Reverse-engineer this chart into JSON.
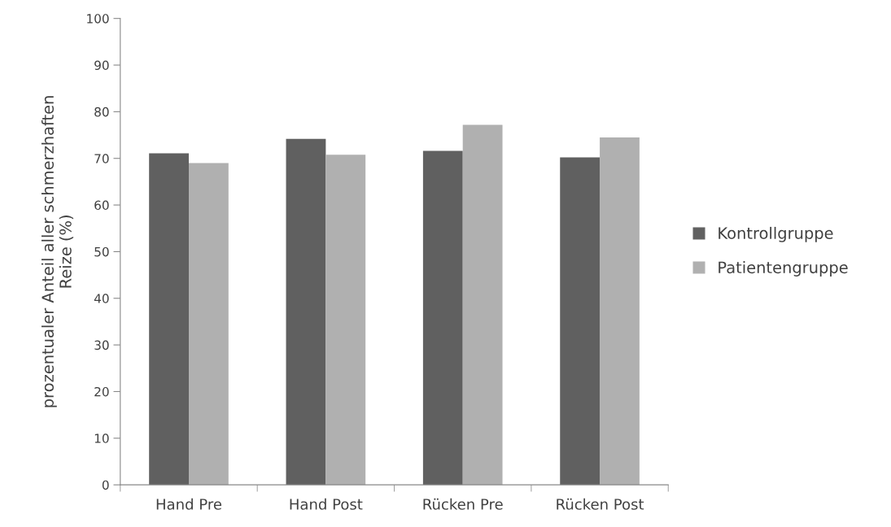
{
  "chart_data": {
    "type": "bar",
    "ylabel": "prozentualer Anteil aller schmerzhaften\nReize (%)",
    "categories": [
      "Hand Pre",
      "Hand Post",
      "Rücken Pre",
      "Rücken Post"
    ],
    "series": [
      {
        "name": "Kontrollgruppe",
        "color": "#606060",
        "values": [
          71.1,
          74.2,
          71.6,
          70.2
        ]
      },
      {
        "name": "Patientengruppe",
        "color": "#b0b0b0",
        "values": [
          69.0,
          70.8,
          77.2,
          74.5
        ]
      }
    ],
    "ylim": [
      0,
      100
    ],
    "yticks": [
      0,
      10,
      20,
      30,
      40,
      50,
      60,
      70,
      80,
      90,
      100
    ],
    "grid": false,
    "legend": "right"
  }
}
